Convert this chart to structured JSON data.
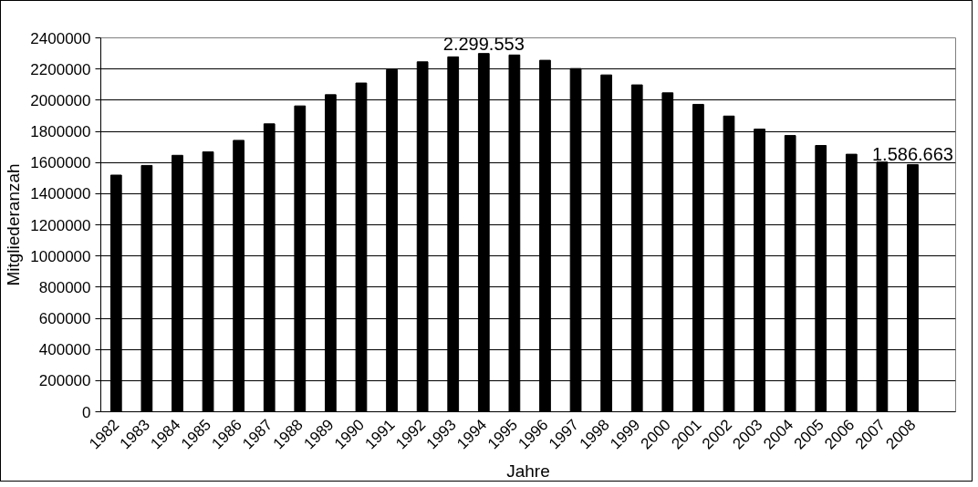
{
  "chart_data": {
    "type": "bar",
    "xlabel": "Jahre",
    "ylabel": "Mitgliederanzah",
    "categories": [
      "1982",
      "1983",
      "1984",
      "1985",
      "1986",
      "1987",
      "1988",
      "1989",
      "1990",
      "1991",
      "1992",
      "1993",
      "1994",
      "1995",
      "1996",
      "1997",
      "1998",
      "1999",
      "2000",
      "2001",
      "2002",
      "2003",
      "2004",
      "2005",
      "2006",
      "2007",
      "2008"
    ],
    "values": [
      1519000,
      1581000,
      1646000,
      1668000,
      1742000,
      1848000,
      1963000,
      2035000,
      2110000,
      2196000,
      2246000,
      2278000,
      2299553,
      2290000,
      2256000,
      2203000,
      2162000,
      2098000,
      2047000,
      1973000,
      1898000,
      1814000,
      1773000,
      1709000,
      1653000,
      1603000,
      1586663
    ],
    "value_labels": [
      null,
      null,
      null,
      null,
      null,
      null,
      null,
      null,
      null,
      null,
      null,
      null,
      "2.299.553",
      null,
      null,
      null,
      null,
      null,
      null,
      null,
      null,
      null,
      null,
      null,
      null,
      null,
      "1.586.663"
    ],
    "color": "#000000",
    "ylim": [
      0,
      2400000
    ],
    "yticks": [
      0,
      200000,
      400000,
      600000,
      800000,
      1000000,
      1200000,
      1400000,
      1600000,
      1800000,
      2000000,
      2200000,
      2400000
    ],
    "grid": "y"
  }
}
